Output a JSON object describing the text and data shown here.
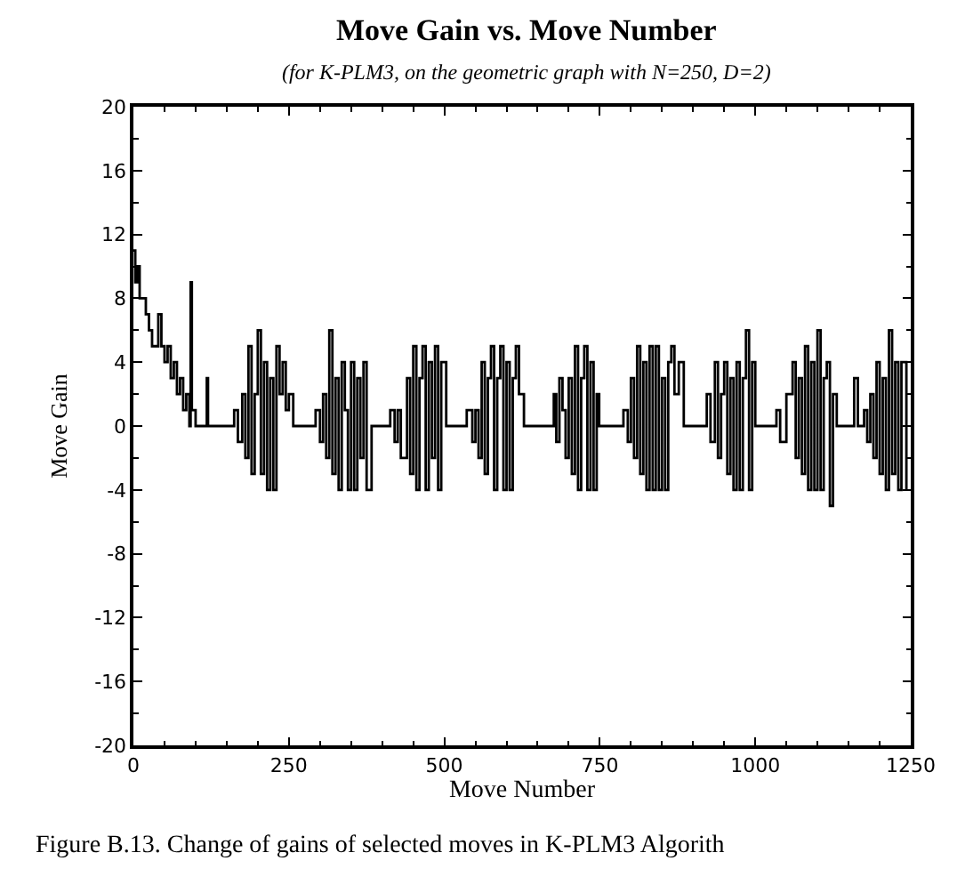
{
  "chart_data": {
    "type": "step",
    "title": "Move Gain vs. Move Number",
    "subtitle": "(for K-PLM3, on the geometric graph with N=250, D=2)",
    "xlabel": "Move Number",
    "ylabel": "Move Gain",
    "annotations": [
      "Figure B.13. Change of gains of selected moves in K-PLM3 Algorith"
    ],
    "x": [
      0,
      3,
      6,
      10,
      15,
      20,
      25,
      30,
      35,
      40,
      45,
      50,
      55,
      60,
      65,
      70,
      75,
      80,
      85,
      90,
      92,
      94,
      100,
      118,
      120,
      162,
      168,
      175,
      180,
      185,
      190,
      195,
      200,
      205,
      210,
      215,
      220,
      225,
      230,
      235,
      240,
      245,
      250,
      257,
      293,
      300,
      305,
      310,
      315,
      320,
      325,
      330,
      335,
      340,
      345,
      350,
      355,
      360,
      365,
      370,
      375,
      383,
      413,
      420,
      425,
      430,
      440,
      445,
      450,
      455,
      460,
      465,
      470,
      475,
      480,
      485,
      490,
      495,
      503,
      536,
      545,
      550,
      555,
      560,
      565,
      570,
      575,
      580,
      585,
      590,
      595,
      600,
      605,
      610,
      615,
      620,
      628,
      676,
      680,
      685,
      690,
      695,
      700,
      705,
      710,
      715,
      720,
      725,
      730,
      735,
      740,
      745,
      749,
      788,
      795,
      800,
      805,
      810,
      815,
      820,
      825,
      830,
      835,
      840,
      845,
      850,
      855,
      860,
      865,
      870,
      877,
      885,
      922,
      928,
      935,
      940,
      945,
      950,
      955,
      960,
      965,
      970,
      975,
      980,
      985,
      990,
      995,
      1000,
      1034,
      1040,
      1050,
      1060,
      1065,
      1070,
      1075,
      1080,
      1085,
      1090,
      1095,
      1100,
      1105,
      1110,
      1115,
      1120,
      1125,
      1131,
      1159,
      1165,
      1175,
      1180,
      1185,
      1190,
      1195,
      1200,
      1205,
      1210,
      1215,
      1220,
      1225,
      1230,
      1235,
      1243
    ],
    "values": [
      11,
      9,
      10,
      8,
      8,
      7,
      6,
      5,
      5,
      7,
      5,
      4,
      5,
      3,
      4,
      2,
      3,
      1,
      2,
      0,
      9,
      1,
      0,
      3,
      0,
      1,
      -1,
      2,
      -2,
      5,
      -3,
      2,
      6,
      -3,
      4,
      -4,
      3,
      -4,
      5,
      2,
      4,
      1,
      2,
      0,
      1,
      -1,
      2,
      -2,
      6,
      -3,
      3,
      -4,
      4,
      1,
      -4,
      4,
      -4,
      3,
      -2,
      4,
      -4,
      0,
      1,
      -1,
      1,
      -2,
      3,
      -3,
      5,
      -4,
      3,
      5,
      -4,
      4,
      -2,
      5,
      -4,
      4,
      0,
      1,
      -1,
      1,
      -2,
      4,
      -3,
      3,
      5,
      -4,
      3,
      5,
      -4,
      4,
      -4,
      3,
      5,
      2,
      0,
      2,
      -1,
      3,
      1,
      -2,
      3,
      -3,
      5,
      -4,
      3,
      5,
      -4,
      4,
      -4,
      2,
      0,
      1,
      -1,
      3,
      -2,
      5,
      -3,
      4,
      -4,
      5,
      -4,
      5,
      -4,
      3,
      -4,
      4,
      5,
      2,
      4,
      0,
      2,
      -1,
      4,
      -2,
      2,
      4,
      -3,
      3,
      -4,
      4,
      -4,
      3,
      6,
      -4,
      4,
      0,
      1,
      -1,
      2,
      4,
      -2,
      3,
      -3,
      5,
      -4,
      4,
      -4,
      6,
      -4,
      3,
      4,
      -5,
      2,
      0,
      3,
      0,
      1,
      -1,
      2,
      -2,
      4,
      -3,
      3,
      -4,
      6,
      -3,
      4,
      -4,
      4,
      -4
    ],
    "color": "#000000",
    "xlim": [
      0,
      1250
    ],
    "xticks": [
      0,
      250,
      500,
      750,
      1000,
      1250
    ],
    "ylim": [
      -20,
      20
    ],
    "yticks": [
      -20,
      -16,
      -12,
      -8,
      -4,
      0,
      4,
      8,
      12,
      16,
      20
    ],
    "legend": false,
    "marker": "none",
    "line_style": "solid"
  }
}
